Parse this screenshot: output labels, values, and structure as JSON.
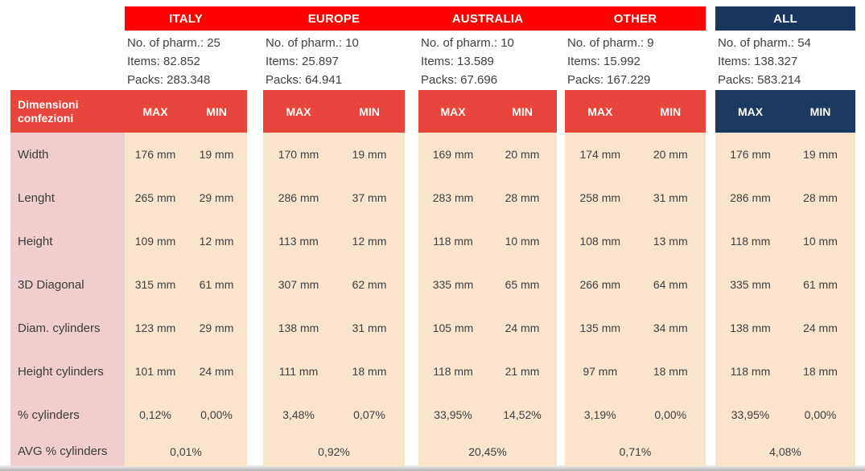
{
  "corner": {
    "label": "Dimensioni confezioni"
  },
  "header": {
    "max": "MAX",
    "min": "MIN"
  },
  "row_labels": [
    "Width",
    "Lenght",
    "Height",
    "3D Diagonal",
    "Diam. cylinders",
    "Height cylinders",
    "% cylinders"
  ],
  "avg_label": "AVG % cylinders",
  "colors": {
    "top_band_red": "#fe0000",
    "header_red": "#e8463c",
    "navy": "#17375e",
    "label_pink": "#f2cdcd",
    "cell_peach": "#fbe4cc"
  },
  "regions": [
    {
      "name": "ITALY",
      "accent": "red",
      "stats": [
        "No. of pharm.: 25",
        "Items: 82.852",
        "Packs: 283.348"
      ],
      "values": [
        [
          "176 mm",
          "19 mm"
        ],
        [
          "265 mm",
          "29 mm"
        ],
        [
          "109 mm",
          "12 mm"
        ],
        [
          "315 mm",
          "61 mm"
        ],
        [
          "123 mm",
          "29 mm"
        ],
        [
          "101 mm",
          "24 mm"
        ],
        [
          "0,12%",
          "0,00%"
        ]
      ],
      "avg": "0,01%"
    },
    {
      "name": "EUROPE",
      "accent": "red",
      "stats": [
        "No. of pharm.: 10",
        "Items: 25.897",
        "Packs: 64.941"
      ],
      "values": [
        [
          "170 mm",
          "19 mm"
        ],
        [
          "286 mm",
          "37 mm"
        ],
        [
          "113 mm",
          "12 mm"
        ],
        [
          "307 mm",
          "62 mm"
        ],
        [
          "138 mm",
          "31 mm"
        ],
        [
          "111 mm",
          "18 mm"
        ],
        [
          "3,48%",
          "0,07%"
        ]
      ],
      "avg": "0,92%"
    },
    {
      "name": "AUSTRALIA",
      "accent": "red",
      "stats": [
        "No. of pharm.: 10",
        "Items: 13.589",
        "Packs: 67.696"
      ],
      "values": [
        [
          "169 mm",
          "20 mm"
        ],
        [
          "283 mm",
          "28 mm"
        ],
        [
          "118 mm",
          "10 mm"
        ],
        [
          "335 mm",
          "65 mm"
        ],
        [
          "105 mm",
          "24 mm"
        ],
        [
          "118 mm",
          "21 mm"
        ],
        [
          "33,95%",
          "14,52%"
        ]
      ],
      "avg": "20,45%"
    },
    {
      "name": "OTHER",
      "accent": "red",
      "stats": [
        "No. of pharm.: 9",
        "Items: 15.992",
        "Packs: 167.229"
      ],
      "values": [
        [
          "174 mm",
          "20 mm"
        ],
        [
          "258 mm",
          "31 mm"
        ],
        [
          "108 mm",
          "13 mm"
        ],
        [
          "266 mm",
          "64 mm"
        ],
        [
          "135 mm",
          "34 mm"
        ],
        [
          "97 mm",
          "18 mm"
        ],
        [
          "3,19%",
          "0,00%"
        ]
      ],
      "avg": "0,71%"
    },
    {
      "name": "ALL",
      "accent": "navy",
      "stats": [
        "No. of pharm.: 54",
        "Items: 138.327",
        "Packs: 583.214"
      ],
      "values": [
        [
          "176 mm",
          "19 mm"
        ],
        [
          "286 mm",
          "28 mm"
        ],
        [
          "118 mm",
          "10 mm"
        ],
        [
          "335 mm",
          "61 mm"
        ],
        [
          "138 mm",
          "24 mm"
        ],
        [
          "118 mm",
          "18 mm"
        ],
        [
          "33,95%",
          "0,00%"
        ]
      ],
      "avg": "4,08%"
    }
  ]
}
